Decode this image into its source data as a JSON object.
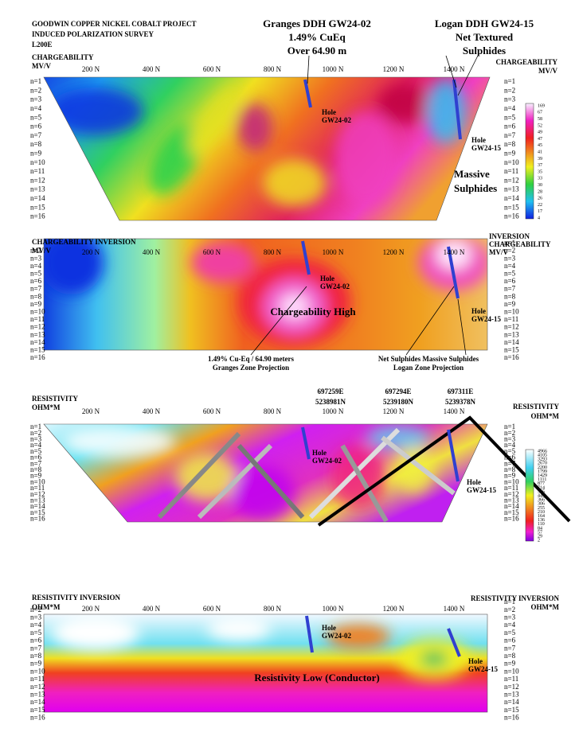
{
  "header": {
    "lines": [
      "GOODWIN COPPER NICKEL COBALT PROJECT",
      "INDUCED POLARIZATION SURVEY",
      "L200E"
    ],
    "granges": [
      "Granges DDH GW24-02",
      "1.49% CuEq",
      "Over 64.90 m"
    ],
    "logan": [
      "Logan DDH GW24-15",
      "Net Textured",
      "Sulphides"
    ]
  },
  "x_axis_labels": [
    "200 N",
    "400 N",
    "600 N",
    "800 N",
    "1000 N",
    "1200 N",
    "1400 N"
  ],
  "n_labels": [
    "n=1",
    "n=2",
    "n=3",
    "n=4",
    "n=5",
    "n=6",
    "n=7",
    "n=8",
    "n=9",
    "n=10",
    "n=11",
    "n=12",
    "n=13",
    "n=14",
    "n=15",
    "n=16"
  ],
  "panels": [
    {
      "title": [
        "CHARGEABILITY",
        "MV/V"
      ],
      "right_title": [
        "CHARGEABILITY",
        "MV/V"
      ],
      "annotations": [
        "Hole",
        "GW24-02",
        "Hole",
        "GW24-15",
        "Massive",
        "Sulphides"
      ],
      "colorbar": [
        "169",
        "67",
        "58",
        "52",
        "49",
        "47",
        "45",
        "41",
        "39",
        "37",
        "35",
        "33",
        "30",
        "28",
        "26",
        "22",
        "17",
        "4"
      ]
    },
    {
      "title": [
        "CHARGEABILITY INVERSION",
        "MV/V"
      ],
      "right_title": [
        "INVERSION",
        "CHARGEABILITY",
        "MV/V"
      ],
      "annotations": [
        "Hole",
        "GW24-02",
        "Hole",
        "GW24-15",
        "Chargeability High",
        "1.49% Cu-Eq / 64.90 meters",
        "Granges Zone Projection",
        "Net Sulphides  Massive Sulphides",
        "Logan Zone Projection"
      ]
    },
    {
      "title": [
        "RESISTIVITY",
        "OHM*M"
      ],
      "right_title": [
        "RESISTIVITY",
        "OHM*M"
      ],
      "coords": [
        [
          "697259E",
          "5238981N"
        ],
        [
          "697294E",
          "5239180N"
        ],
        [
          "697311E",
          "5239378N"
        ]
      ],
      "annotations": [
        "Hole",
        "GW24-02",
        "Hole",
        "GW24-15"
      ],
      "colorbar": [
        "4966",
        "4105",
        "3293",
        "2670",
        "2200",
        "1799",
        "1429",
        "1111",
        "877",
        "714",
        "565",
        "443",
        "366",
        "306",
        "255",
        "210",
        "164",
        "136",
        "110",
        "84",
        "57",
        "29",
        "2"
      ]
    },
    {
      "title": [
        "RESISTIVITY INVERSION",
        "OHM*M"
      ],
      "right_title": [
        "RESISTIVITY INVERSION",
        "OHM*M"
      ],
      "annotations": [
        "Hole",
        "GW24-02",
        "Hole",
        "GW24-15",
        "Resistivity Low (Conductor)"
      ]
    }
  ]
}
